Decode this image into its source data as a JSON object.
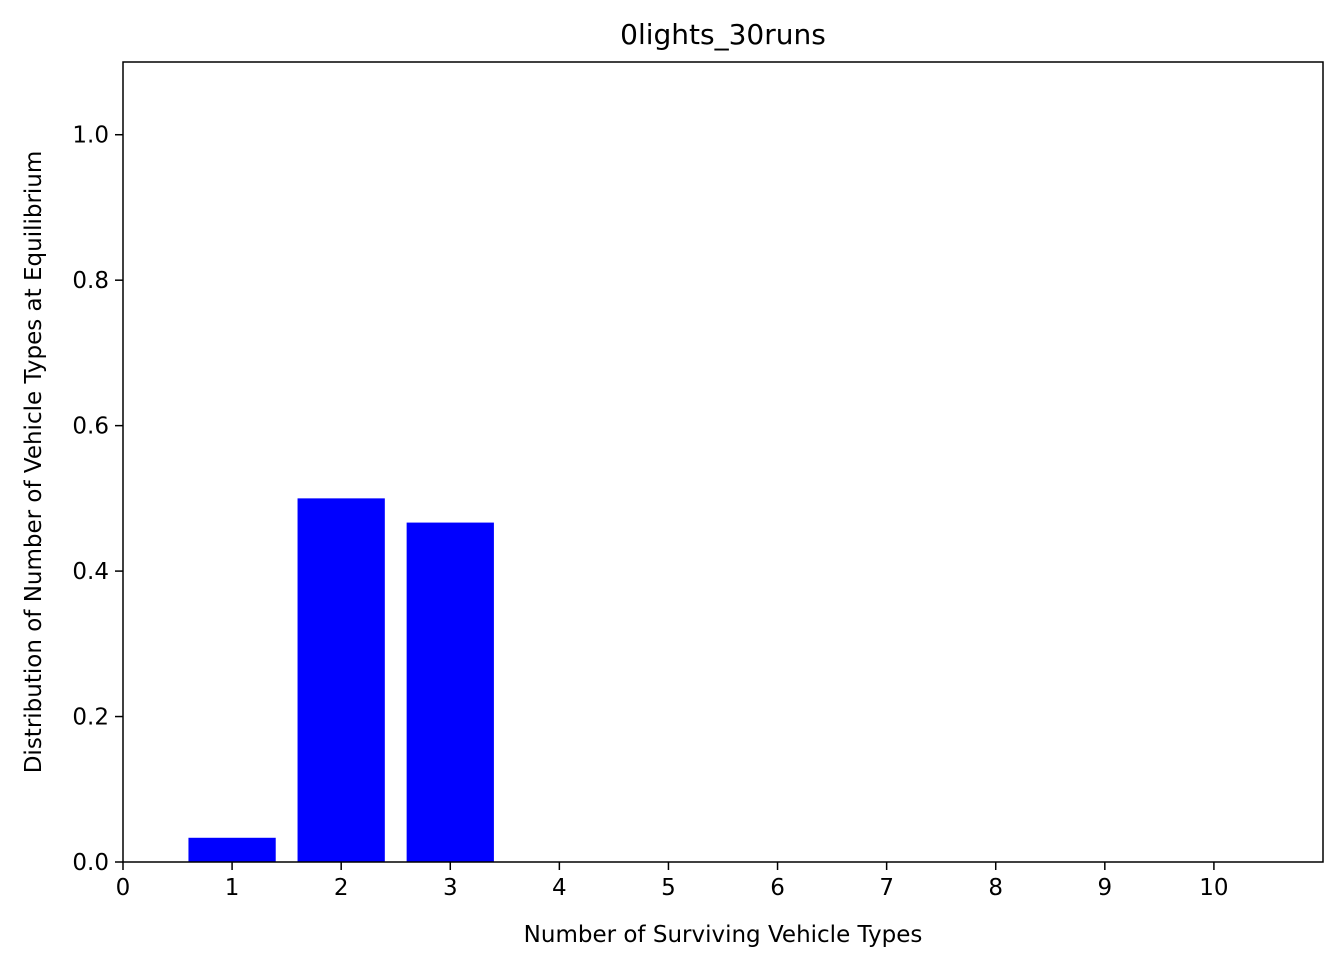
{
  "chart_data": {
    "type": "bar",
    "title": "0lights_30runs",
    "xlabel": "Number of Surviving Vehicle Types",
    "ylabel": "Distribution of Number of Vehicle Types at Equilibrium",
    "categories": [
      1,
      2,
      3
    ],
    "values": [
      0.0333,
      0.5,
      0.4667
    ],
    "bar_width": 0.8,
    "bar_color": "#0000ff",
    "xlim": [
      0,
      11
    ],
    "ylim": [
      0,
      1.1
    ],
    "xticks": [
      0,
      1,
      2,
      3,
      4,
      5,
      6,
      7,
      8,
      9,
      10
    ],
    "yticks": [
      0.0,
      0.2,
      0.4,
      0.6,
      0.8,
      1.0
    ],
    "ytick_labels": [
      "0.0",
      "0.2",
      "0.4",
      "0.6",
      "0.8",
      "1.0"
    ],
    "grid": false,
    "legend": false
  }
}
